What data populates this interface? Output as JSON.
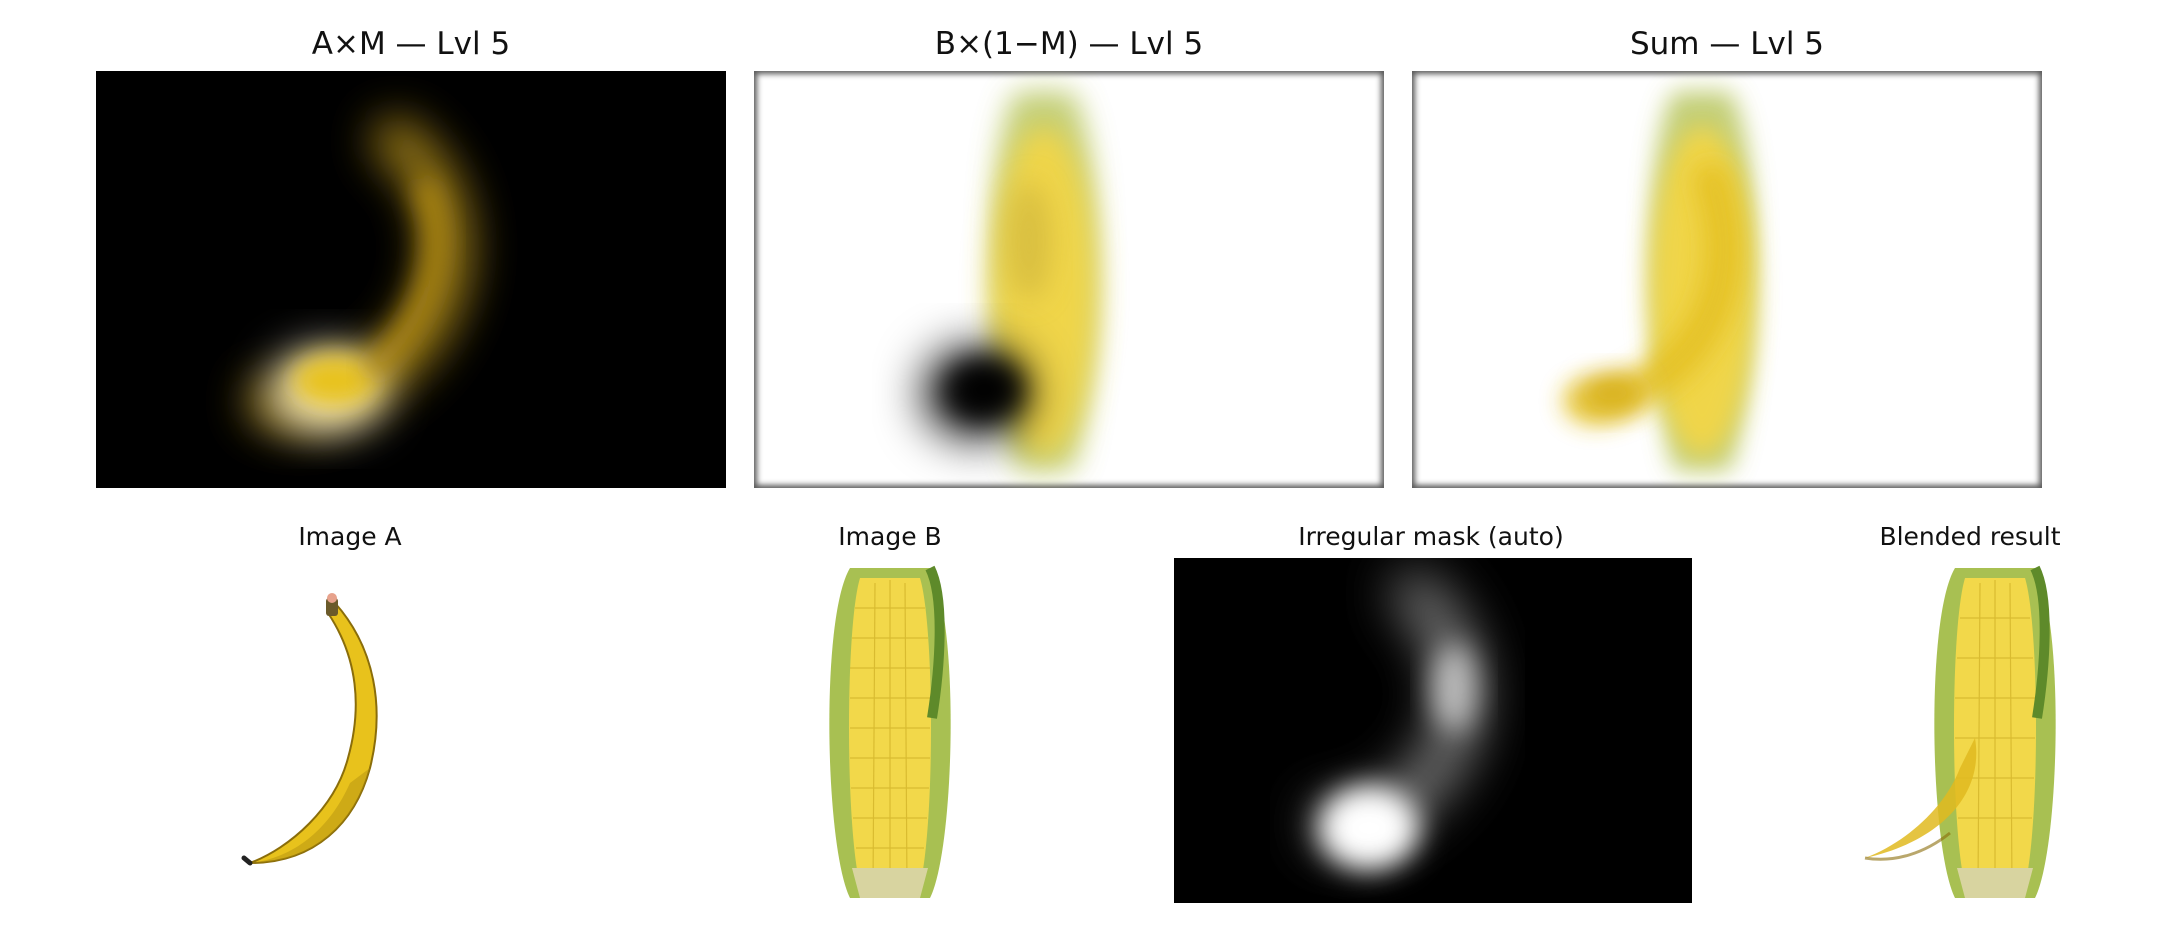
{
  "top_row": {
    "panel_1": {
      "title": "A×M — Lvl 5"
    },
    "panel_2": {
      "title": "B×(1−M) — Lvl 5"
    },
    "panel_3": {
      "title": "Sum — Lvl 5"
    }
  },
  "bottom_row": {
    "panel_1": {
      "title": "Image A"
    },
    "panel_2": {
      "title": "Image B"
    },
    "panel_3": {
      "title": "Irregular mask (auto)"
    },
    "panel_4": {
      "title": "Blended result"
    }
  },
  "colors": {
    "banana_yellow": "#e8c21c",
    "banana_shadow": "#b08d10",
    "corn_yellow": "#f2d84a",
    "husk_green": "#9fb94a",
    "background_black": "#000000",
    "background_white": "#ffffff"
  }
}
